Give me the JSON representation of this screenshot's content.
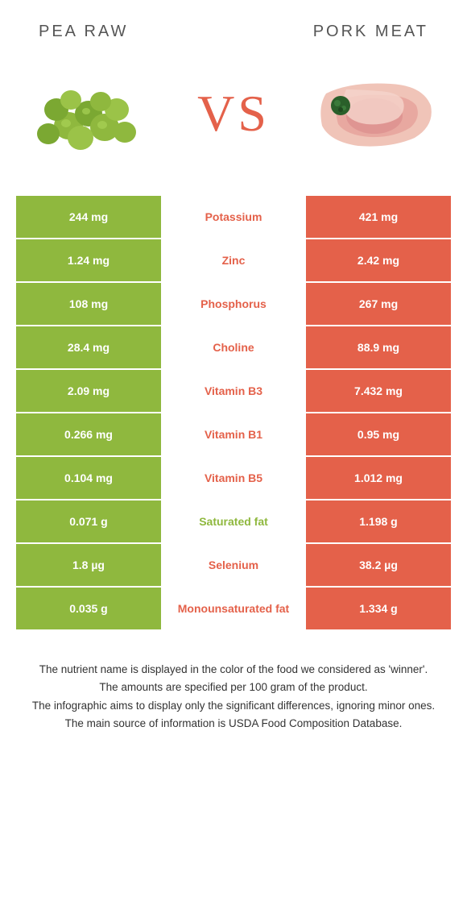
{
  "header": {
    "left_title": "Pea raw",
    "right_title": "Pork meat"
  },
  "vs_label": "VS",
  "colors": {
    "pea_green": "#8fb83e",
    "pork_orange": "#e4614a",
    "winner_text_green": "#8fb83e",
    "winner_text_orange": "#e4614a",
    "white": "#ffffff"
  },
  "rows": [
    {
      "nutrient": "Potassium",
      "left": "244 mg",
      "right": "421 mg",
      "winner": "right"
    },
    {
      "nutrient": "Zinc",
      "left": "1.24 mg",
      "right": "2.42 mg",
      "winner": "right"
    },
    {
      "nutrient": "Phosphorus",
      "left": "108 mg",
      "right": "267 mg",
      "winner": "right"
    },
    {
      "nutrient": "Choline",
      "left": "28.4 mg",
      "right": "88.9 mg",
      "winner": "right"
    },
    {
      "nutrient": "Vitamin B3",
      "left": "2.09 mg",
      "right": "7.432 mg",
      "winner": "right"
    },
    {
      "nutrient": "Vitamin B1",
      "left": "0.266 mg",
      "right": "0.95 mg",
      "winner": "right"
    },
    {
      "nutrient": "Vitamin B5",
      "left": "0.104 mg",
      "right": "1.012 mg",
      "winner": "right"
    },
    {
      "nutrient": "Saturated fat",
      "left": "0.071 g",
      "right": "1.198 g",
      "winner": "left"
    },
    {
      "nutrient": "Selenium",
      "left": "1.8 µg",
      "right": "38.2 µg",
      "winner": "right"
    },
    {
      "nutrient": "Monounsaturated fat",
      "left": "0.035 g",
      "right": "1.334 g",
      "winner": "right"
    }
  ],
  "footer": {
    "line1": "The nutrient name is displayed in the color of the food we considered as 'winner'.",
    "line2": "The amounts are specified per 100 gram of the product.",
    "line3": "The infographic aims to display only the significant differences, ignoring minor ones.",
    "line4": "The main source of information is USDA Food Composition Database."
  }
}
